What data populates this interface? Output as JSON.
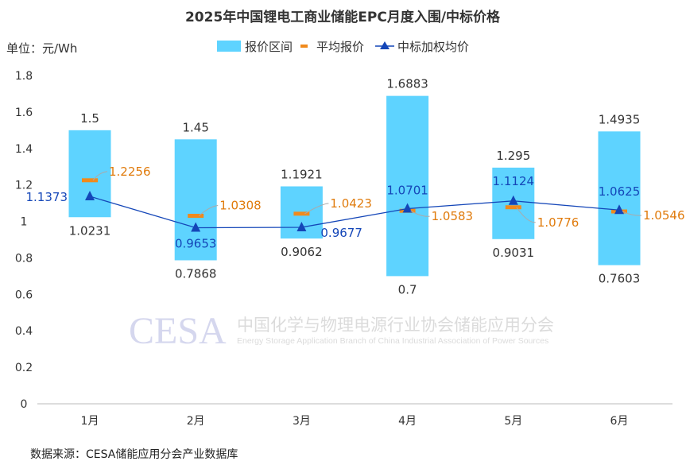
{
  "chart_data": {
    "type": "bar",
    "title": "2025年中国锂电工商业储能EPC月度入围/中标价格",
    "unit_label": "单位：元/Wh",
    "source": "数据来源：CESA储能应用分会产业数据库",
    "watermark": {
      "logo": "CESA",
      "cn": "中国化学与物理电源行业协会储能应用分会",
      "en": "Energy Storage Application Branch of China Industrial Association of Power Sources"
    },
    "categories": [
      "1月",
      "2月",
      "3月",
      "4月",
      "5月",
      "6月"
    ],
    "ylim": [
      0,
      1.8
    ],
    "yticks": [
      "0",
      "0.2",
      "0.4",
      "0.6",
      "0.8",
      "1",
      "1.2",
      "1.4",
      "1.6",
      "1.8"
    ],
    "legend_position": "top-center",
    "series": [
      {
        "name": "报价区间",
        "type": "floating-bar",
        "color": "#5ed3ff",
        "min": [
          1.0231,
          0.7868,
          0.9062,
          0.7,
          0.9031,
          0.7603
        ],
        "max": [
          1.5,
          1.45,
          1.1921,
          1.6883,
          1.295,
          1.4935
        ],
        "min_labels": [
          "1.0231",
          "0.7868",
          "0.9062",
          "0.7",
          "0.9031",
          "0.7603"
        ],
        "max_labels": [
          "1.5",
          "1.45",
          "1.1921",
          "1.6883",
          "1.295",
          "1.4935"
        ]
      },
      {
        "name": "平均报价",
        "type": "marker",
        "color": "#f08a1c",
        "values": [
          1.2256,
          1.0308,
          1.0423,
          1.0583,
          1.0776,
          1.0546
        ],
        "labels": [
          "1.2256",
          "1.0308",
          "1.0423",
          "1.0583",
          "1.0776",
          "1.0546"
        ]
      },
      {
        "name": "中标加权均价",
        "type": "line",
        "color": "#1446b8",
        "values": [
          1.1373,
          0.9653,
          0.9677,
          1.0701,
          1.1124,
          1.0625
        ],
        "labels": [
          "1.1373",
          "0.9653",
          "0.9677",
          "1.0701",
          "1.1124",
          "1.0625"
        ]
      }
    ]
  }
}
